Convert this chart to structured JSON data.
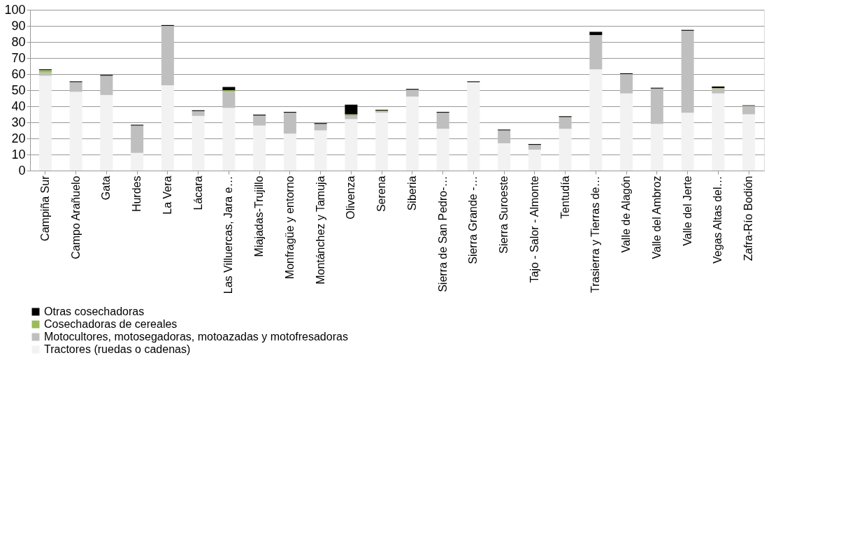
{
  "chart_data": {
    "type": "bar",
    "stacked": true,
    "categories": [
      "Campiña Sur",
      "Campo Arañuelo",
      "Gata",
      "Hurdes",
      "La Vera",
      "Lácara",
      "Las Villuercas, Jara e…",
      "Miajadas-Trujillo",
      "Monfragüe y entorno",
      "Montánchez y Tamuja",
      "Olivenza",
      "Serena",
      "Siberia",
      "Sierra de San Pedro-…",
      "Sierra Grande -…",
      "Sierra Suroeste",
      "Tajo - Salor - Almonte",
      "Tentudía",
      "Trasierra y Tierras de…",
      "Valle de Alagón",
      "Valle del Ambroz",
      "Valle del Jerte",
      "Vegas Altas del…",
      "Zafra-Río Bodión"
    ],
    "series": [
      {
        "name": "Tractores (ruedas o cadenas)",
        "color": "#f2f2f2",
        "values": [
          59,
          49,
          47,
          11,
          53,
          34,
          39,
          28,
          23,
          25,
          32,
          36,
          46,
          26,
          55,
          17,
          13,
          26,
          63,
          48,
          29,
          36,
          48,
          35
        ]
      },
      {
        "name": "Motocultores, motosegadoras, motoazadas y motofresadoras",
        "color": "#bfbfbf",
        "values": [
          2,
          6,
          12,
          17,
          37,
          3,
          10,
          6,
          13,
          4,
          2,
          1,
          4,
          10,
          0,
          8,
          3,
          7,
          21,
          12,
          22,
          51,
          3,
          5
        ]
      },
      {
        "name": "Cosechadoras de cereales",
        "color": "#9bbb59",
        "values": [
          1.5,
          0,
          null,
          0,
          0,
          0,
          1,
          0.3,
          0,
          0,
          1,
          0.3,
          0.3,
          0,
          0,
          0,
          null,
          0.3,
          0.3,
          0,
          0,
          0,
          0.3,
          0.3
        ]
      },
      {
        "name": "Otras cosechadoras",
        "color": "#000000",
        "values": [
          0.5,
          0.5,
          0.5,
          0.5,
          0.5,
          0.5,
          2,
          0.5,
          0.5,
          0.5,
          6,
          0.5,
          0.5,
          0.5,
          0.5,
          0.5,
          0.5,
          0.5,
          2,
          0.5,
          0.5,
          0.5,
          1,
          0.3
        ]
      }
    ],
    "ylim": [
      0,
      100
    ],
    "yticks": [
      0,
      10,
      20,
      30,
      40,
      50,
      60,
      70,
      80,
      90,
      100
    ],
    "grid": "y",
    "legend": "bottom"
  }
}
